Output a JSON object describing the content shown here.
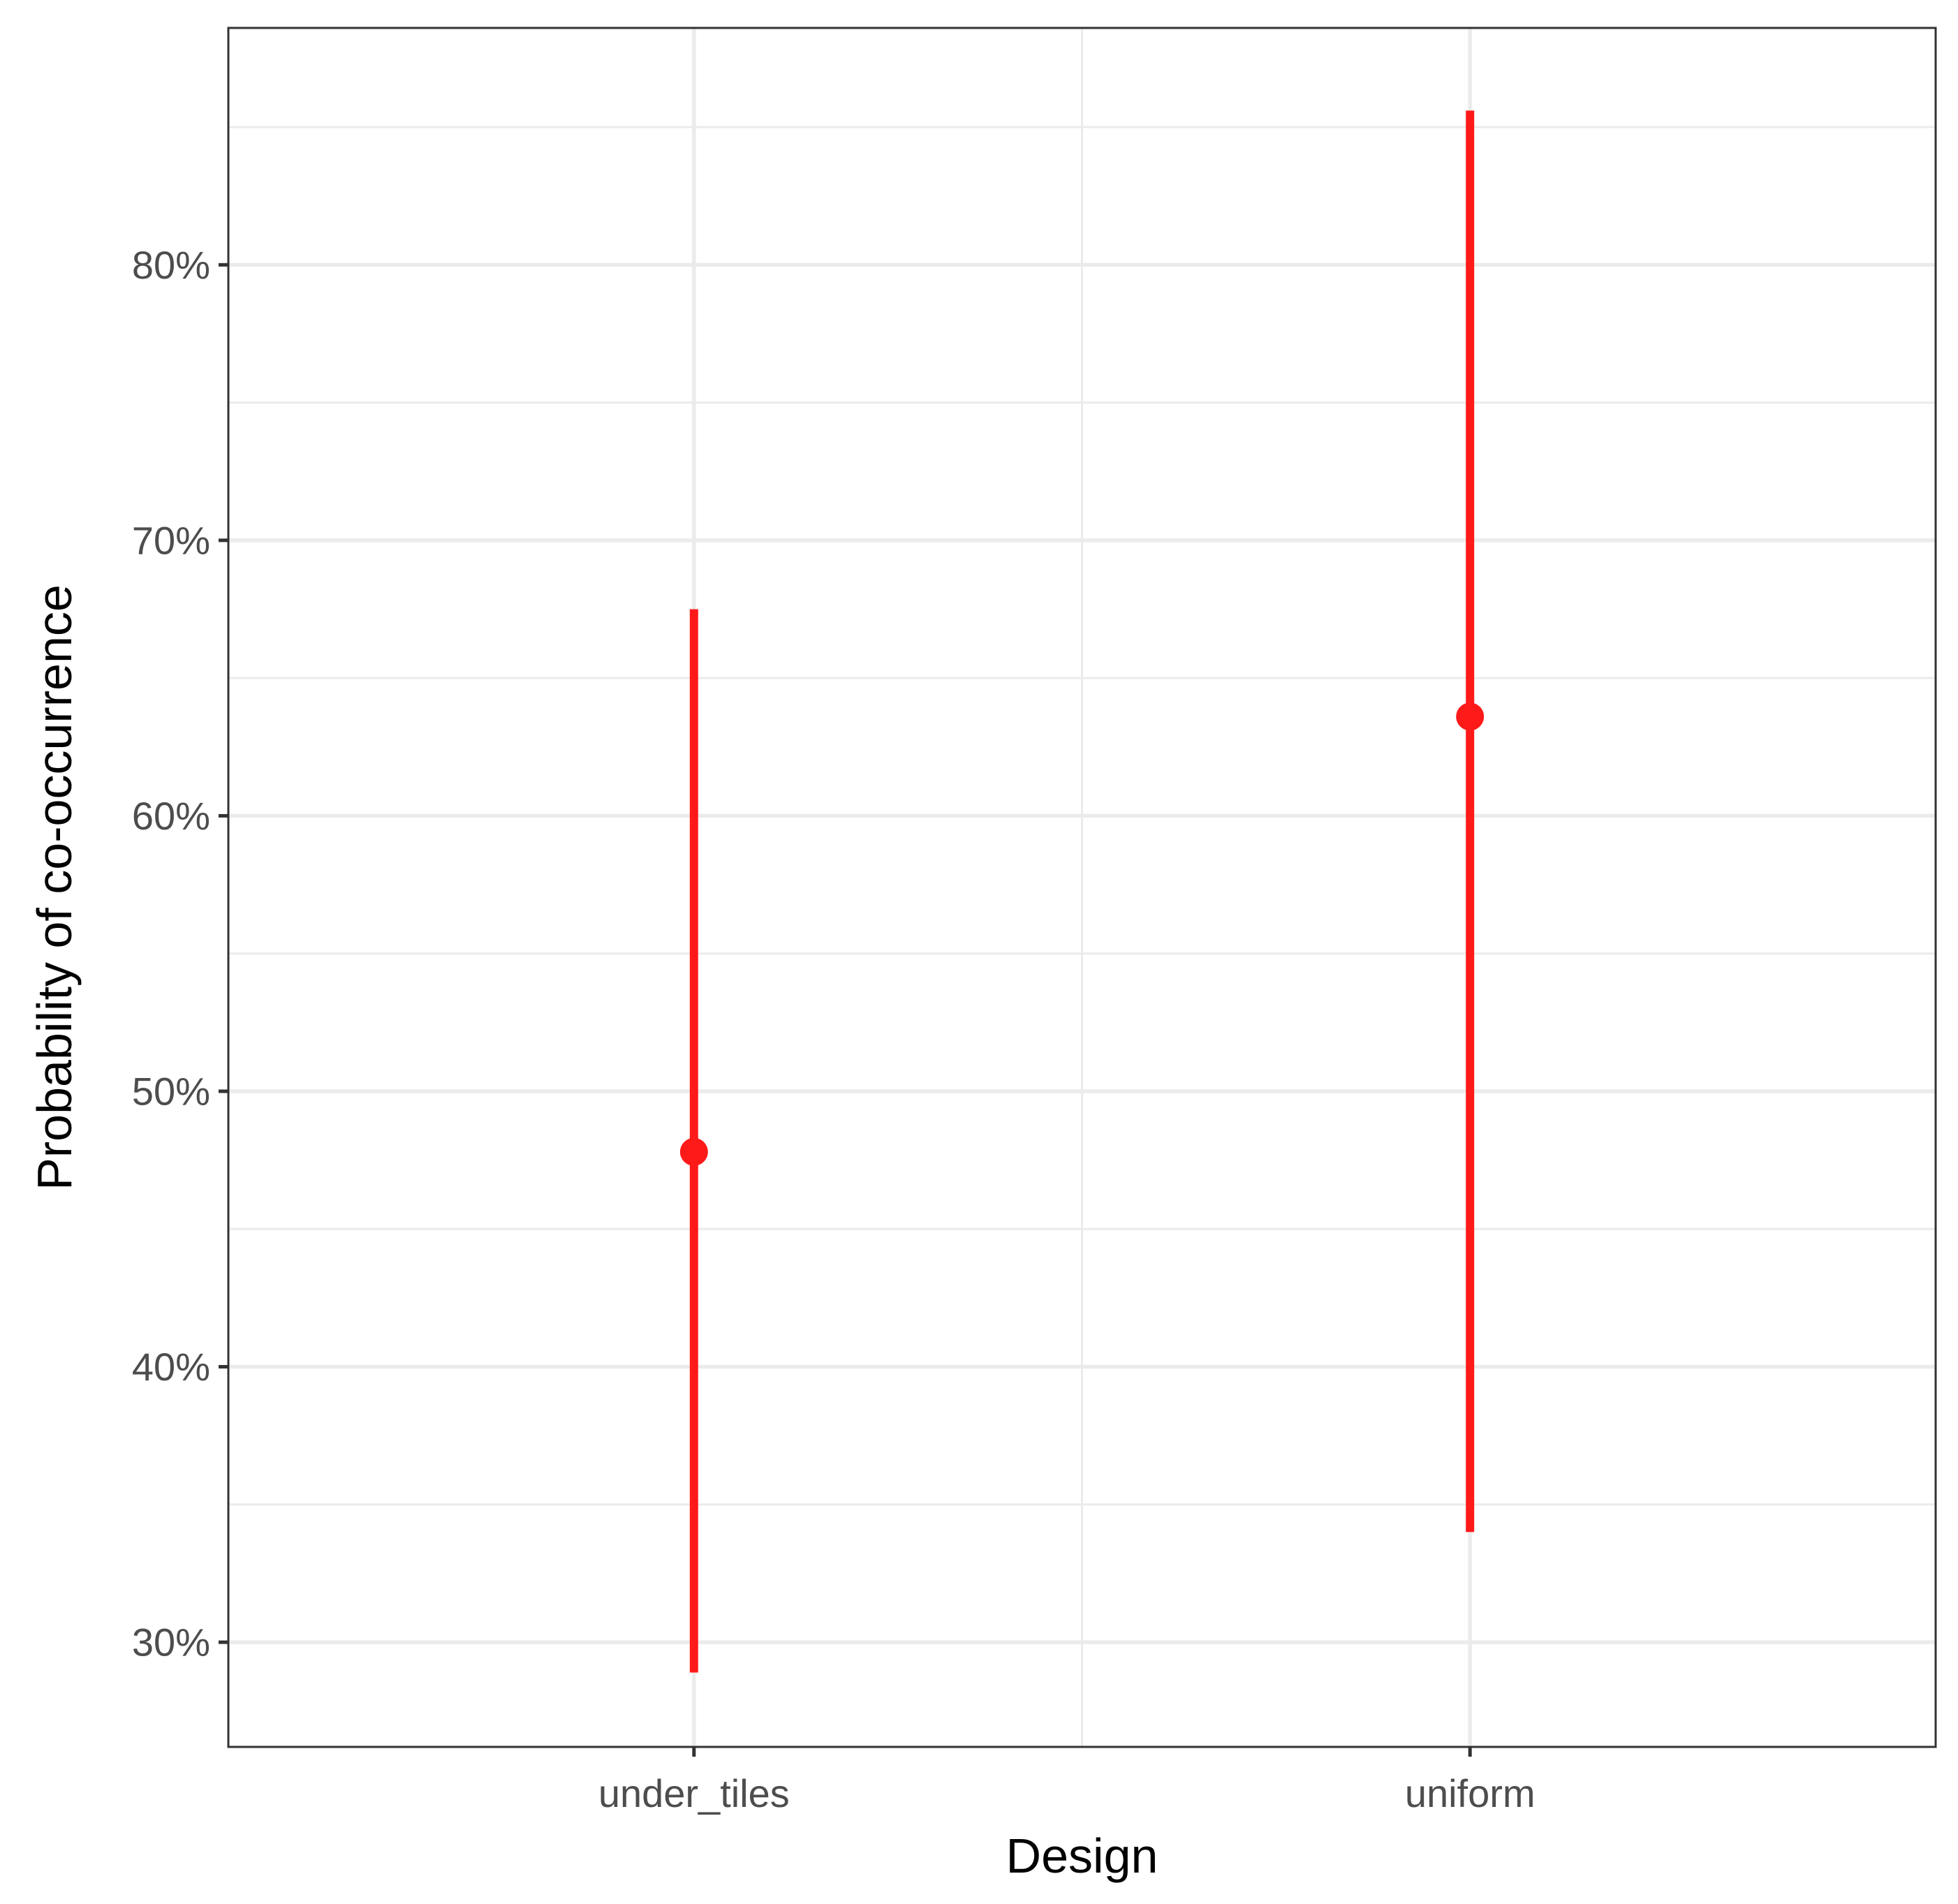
{
  "chart_data": {
    "type": "pointrange",
    "xlabel": "Design",
    "ylabel": "Probability of co-occurrence",
    "categories": [
      "under_tiles",
      "uniform"
    ],
    "ylim": [
      0.262,
      0.886
    ],
    "y_major_ticks": [
      0.3,
      0.4,
      0.5,
      0.6,
      0.7,
      0.8
    ],
    "y_minor_ticks": [
      0.35,
      0.45,
      0.55,
      0.65,
      0.75,
      0.85
    ],
    "y_tick_labels": [
      "30%",
      "40%",
      "50%",
      "60%",
      "70%",
      "80%"
    ],
    "series": [
      {
        "points": [
          {
            "x": "under_tiles",
            "y": 0.478,
            "ymin": 0.289,
            "ymax": 0.675
          },
          {
            "x": "uniform",
            "y": 0.636,
            "ymin": 0.34,
            "ymax": 0.856
          }
        ]
      }
    ],
    "grid": true,
    "colors": {
      "point": "#ff1a1a",
      "range": "#ff1a1a",
      "grid": "#ebebeb",
      "border": "#333333",
      "tick_text": "#4d4d4d"
    }
  }
}
